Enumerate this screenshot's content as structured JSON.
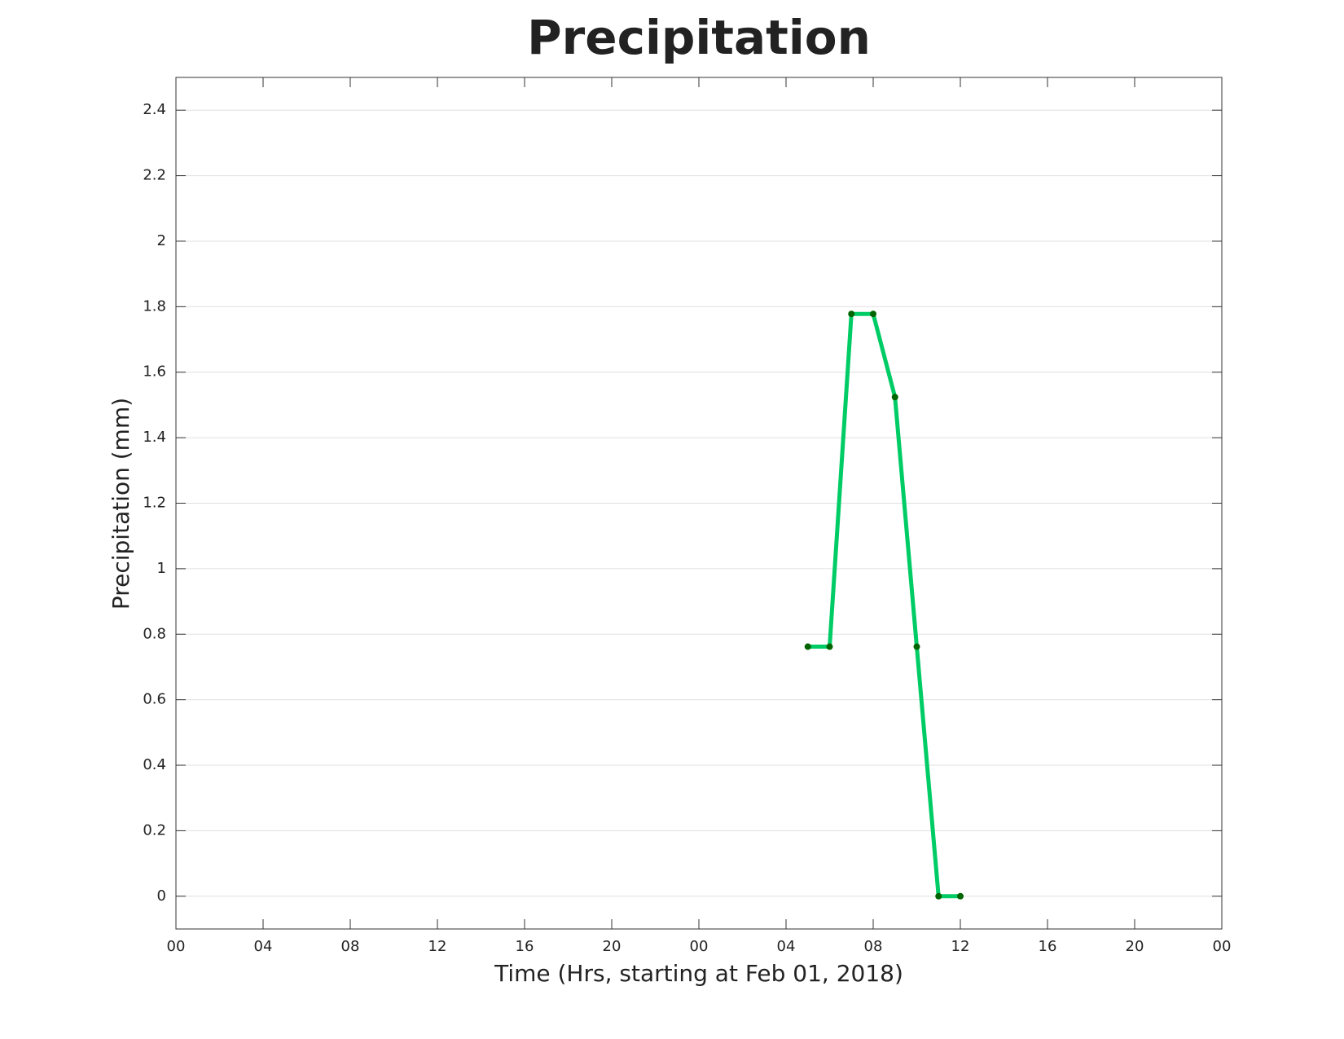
{
  "chart_data": {
    "type": "line",
    "title": "Precipitation",
    "x_label": "Time (Hrs, starting at Feb 01, 2018)",
    "y_label": "Precipitation (mm)",
    "x": [
      29,
      30,
      31,
      32,
      33,
      34,
      35,
      36
    ],
    "values": [
      0.762,
      0.762,
      1.778,
      1.778,
      1.524,
      0.762,
      0,
      0
    ],
    "color": "#00cc66",
    "marker_color": "#006400",
    "xlim": [
      0,
      48
    ],
    "xticks": [
      {
        "value": 0,
        "label": "00"
      },
      {
        "value": 4,
        "label": "04"
      },
      {
        "value": 8,
        "label": "08"
      },
      {
        "value": 12,
        "label": "12"
      },
      {
        "value": 16,
        "label": "16"
      },
      {
        "value": 20,
        "label": "20"
      },
      {
        "value": 24,
        "label": "00"
      },
      {
        "value": 28,
        "label": "04"
      },
      {
        "value": 32,
        "label": "08"
      },
      {
        "value": 36,
        "label": "12"
      },
      {
        "value": 40,
        "label": "16"
      },
      {
        "value": 44,
        "label": "20"
      },
      {
        "value": 48,
        "label": "00"
      }
    ],
    "ylim": [
      -0.1,
      2.5
    ],
    "yticks": [
      0,
      0.2,
      0.4,
      0.6,
      0.8,
      1,
      1.2,
      1.4,
      1.6,
      1.8,
      2,
      2.2,
      2.4
    ],
    "grid": true
  }
}
